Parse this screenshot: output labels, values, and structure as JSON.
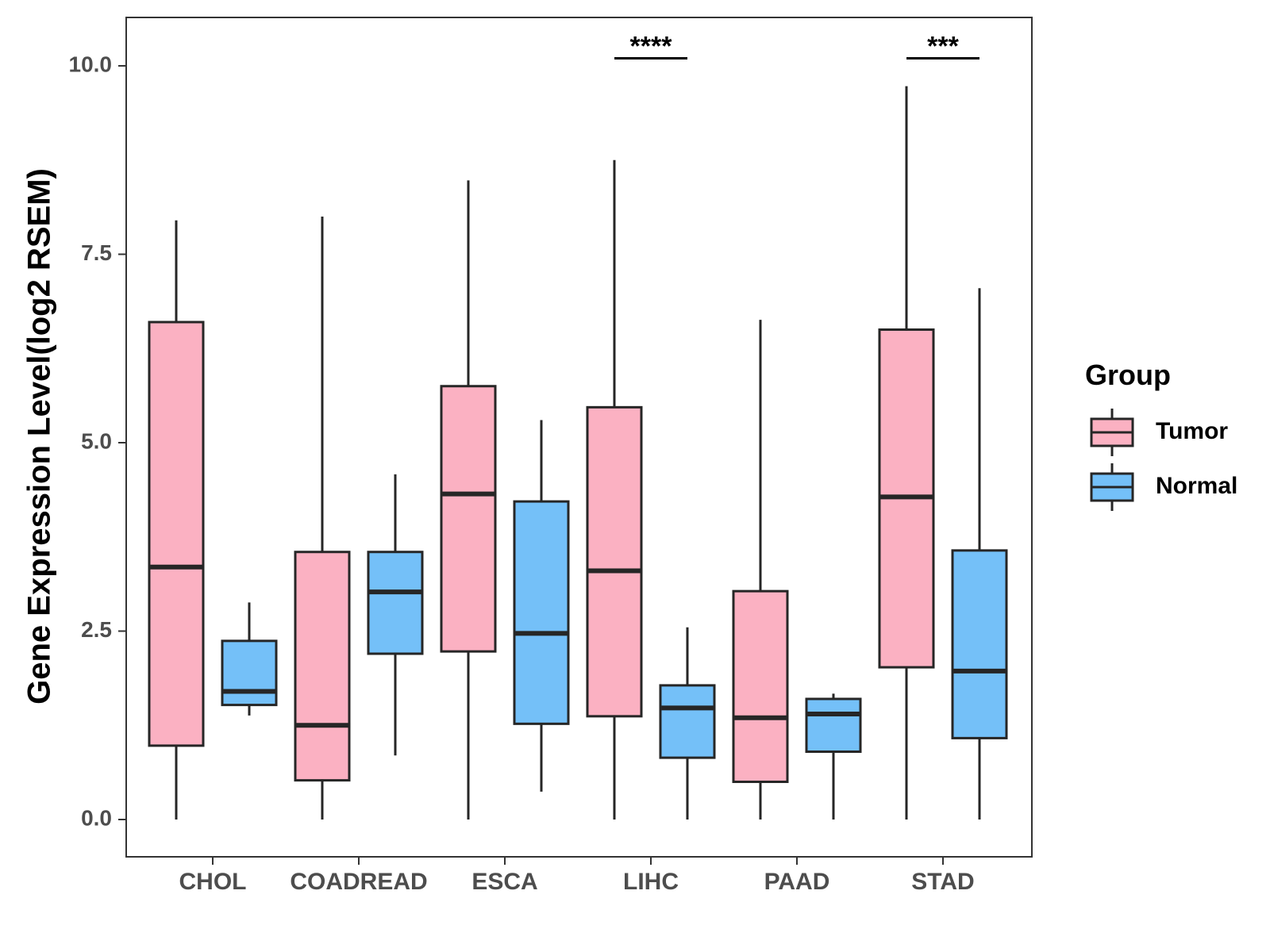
{
  "chart_data": {
    "type": "boxplot",
    "title": "",
    "xlabel": "",
    "ylabel": "Gene Expression Level(log2 RSEM)",
    "ylim": [
      -0.5,
      10.6
    ],
    "yticks": [
      0.0,
      2.5,
      5.0,
      7.5,
      10.0
    ],
    "ytick_labels": [
      "0.0",
      "2.5",
      "5.0",
      "7.5",
      "10.0"
    ],
    "categories": [
      "CHOL",
      "COADREAD",
      "ESCA",
      "LIHC",
      "PAAD",
      "STAD"
    ],
    "grid": false,
    "legend": {
      "title": "Group",
      "position": "right",
      "entries": [
        {
          "name": "Tumor",
          "color": "#FBB1C2"
        },
        {
          "name": "Normal",
          "color": "#74C0F8"
        }
      ]
    },
    "series": [
      {
        "name": "Tumor",
        "color": "#FBB1C2",
        "boxes": [
          {
            "category": "CHOL",
            "min": 0.0,
            "q1": 0.98,
            "median": 3.35,
            "q3": 6.6,
            "max": 7.95
          },
          {
            "category": "COADREAD",
            "min": 0.0,
            "q1": 0.52,
            "median": 1.25,
            "q3": 3.55,
            "max": 8.0
          },
          {
            "category": "ESCA",
            "min": 0.0,
            "q1": 2.23,
            "median": 4.32,
            "q3": 5.75,
            "max": 8.48
          },
          {
            "category": "LIHC",
            "min": 0.0,
            "q1": 1.37,
            "median": 3.3,
            "q3": 5.47,
            "max": 8.75
          },
          {
            "category": "PAAD",
            "min": 0.0,
            "q1": 0.5,
            "median": 1.35,
            "q3": 3.03,
            "max": 6.63
          },
          {
            "category": "STAD",
            "min": 0.0,
            "q1": 2.02,
            "median": 4.28,
            "q3": 6.5,
            "max": 9.73
          }
        ]
      },
      {
        "name": "Normal",
        "color": "#74C0F8",
        "boxes": [
          {
            "category": "CHOL",
            "min": 1.38,
            "q1": 1.52,
            "median": 1.7,
            "q3": 2.37,
            "max": 2.88
          },
          {
            "category": "COADREAD",
            "min": 0.85,
            "q1": 2.2,
            "median": 3.02,
            "q3": 3.55,
            "max": 4.58
          },
          {
            "category": "ESCA",
            "min": 0.37,
            "q1": 1.27,
            "median": 2.47,
            "q3": 4.22,
            "max": 5.3
          },
          {
            "category": "LIHC",
            "min": 0.0,
            "q1": 0.82,
            "median": 1.48,
            "q3": 1.78,
            "max": 2.55
          },
          {
            "category": "PAAD",
            "min": 0.0,
            "q1": 0.9,
            "median": 1.4,
            "q3": 1.6,
            "max": 1.67
          },
          {
            "category": "STAD",
            "min": 0.0,
            "q1": 1.08,
            "median": 1.97,
            "q3": 3.57,
            "max": 7.05
          }
        ]
      }
    ],
    "annotations": [
      {
        "category": "LIHC",
        "label": "****",
        "y": 10.1
      },
      {
        "category": "STAD",
        "label": "***",
        "y": 10.1
      }
    ]
  }
}
